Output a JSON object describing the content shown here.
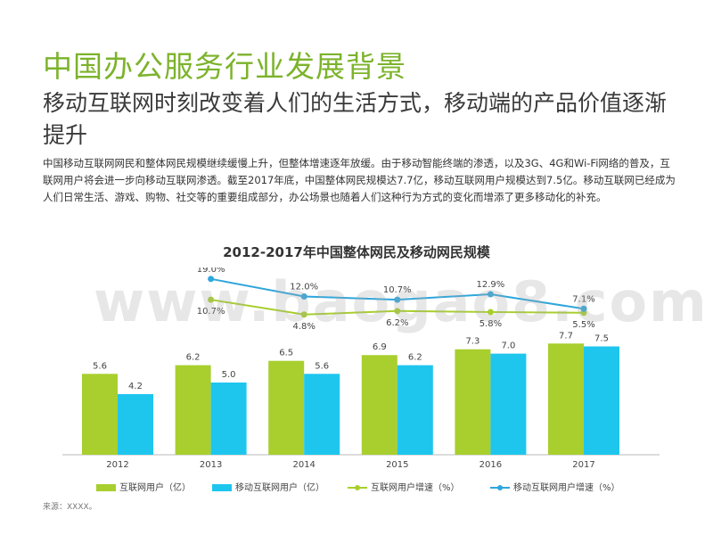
{
  "page": {
    "title": "中国办公服务行业发展背景",
    "subtitle": "移动互联网时刻改变着人们的生活方式，移动端的产品价值逐渐提升",
    "body": "中国移动互联网网民和整体网民规模继续缓慢上升，但整体增速逐年放缓。由于移动智能终端的渗透，以及3G、4G和Wi-Fi网络的普及，互联网用户将会进一步向移动互联网渗透。截至2017年底，中国整体网民规模达7.7亿，移动互联网用户规模达到7.5亿。移动互联网已经成为人们日常生活、游戏、购物、社交等的重要组成部分，办公场景也随着人们这种行为方式的变化而增添了更多移动化的补充。",
    "watermark": "www.baogao8.com",
    "source": "来源：XXXX。"
  },
  "colors": {
    "title_green": "#7cb32b",
    "bar_green": "#a8cf2e",
    "bar_cyan": "#1ec6ee",
    "line_green": "#a8cf2e",
    "line_blue": "#2fa6dc"
  },
  "legend": {
    "internet_users": "互联网用户（亿）",
    "mobile_users": "移动互联网用户（亿）",
    "internet_growth": "互联网用户增速（%）",
    "mobile_growth": "移动互联网用户增速（%）"
  },
  "chart_data": {
    "type": "bar",
    "title": "2012-2017年中国整体网民及移动网民规模",
    "categories": [
      "2012",
      "2013",
      "2014",
      "2015",
      "2016",
      "2017"
    ],
    "series": [
      {
        "name": "互联网用户（亿）",
        "type": "bar",
        "values": [
          5.6,
          6.2,
          6.5,
          6.9,
          7.3,
          7.7
        ],
        "labels": [
          "5.6",
          "6.2",
          "6.5",
          "6.9",
          "7.3",
          "7.7"
        ]
      },
      {
        "name": "移动互联网用户（亿）",
        "type": "bar",
        "values": [
          4.2,
          5.0,
          5.6,
          6.2,
          7.0,
          7.5
        ],
        "labels": [
          "4.2",
          "5.0",
          "5.6",
          "6.2",
          "7.0",
          "7.5"
        ]
      },
      {
        "name": "互联网用户增速（%）",
        "type": "line",
        "values": [
          null,
          10.7,
          4.8,
          6.2,
          5.8,
          5.5
        ],
        "labels": [
          "",
          "10.7%",
          "4.8%",
          "6.2%",
          "5.8%",
          "5.5%"
        ]
      },
      {
        "name": "移动互联网用户增速（%）",
        "type": "line",
        "values": [
          null,
          19.0,
          12.0,
          10.7,
          12.9,
          7.1
        ],
        "labels": [
          "",
          "19.0%",
          "12.0%",
          "10.7%",
          "12.9%",
          "7.1%"
        ]
      }
    ],
    "bar_ylim": [
      0,
      10
    ],
    "line_ylim": [
      0,
      20
    ],
    "grid": false,
    "legend_position": "bottom"
  }
}
